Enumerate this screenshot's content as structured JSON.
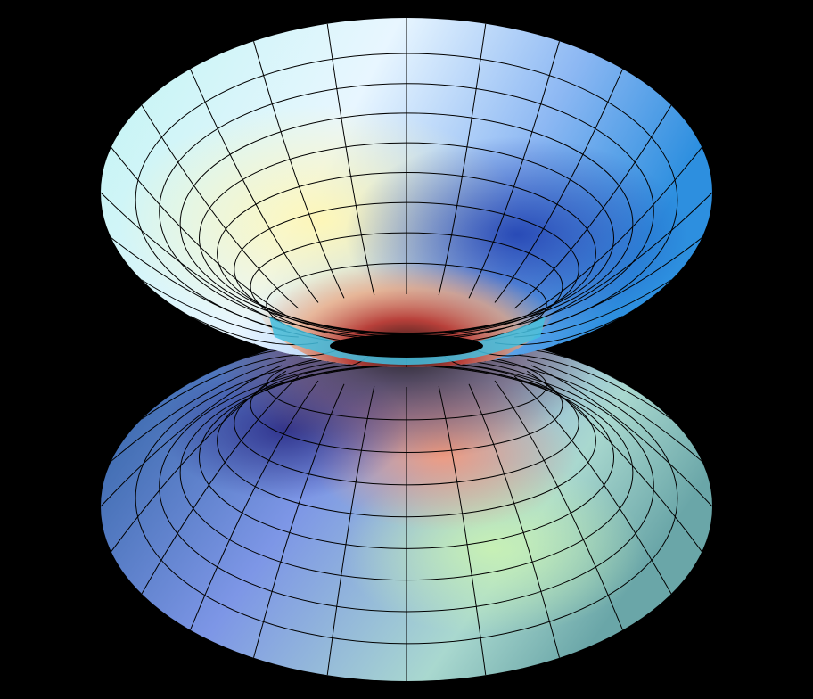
{
  "figure": {
    "subject": "wormhole-surface",
    "background_color": "#000000",
    "grid_line_color": "#000000",
    "grid_rings_per_half": 8,
    "grid_meridians": 24
  },
  "colors": {
    "upper_rim": "#b8ecf6",
    "upper_right": "#2f8fe0",
    "upper_left_glow": "#fff4b0",
    "throat_red": "#d0403c",
    "throat_dark": "#1a1a1a",
    "throat_rim": "#49bde6",
    "lower_left": "#2d5f9c",
    "lower_center": "#7e97ea",
    "lower_right_green": "#b7e6b2",
    "lower_orange": "#f0a586",
    "lower_purple": "#3a3b8f"
  }
}
